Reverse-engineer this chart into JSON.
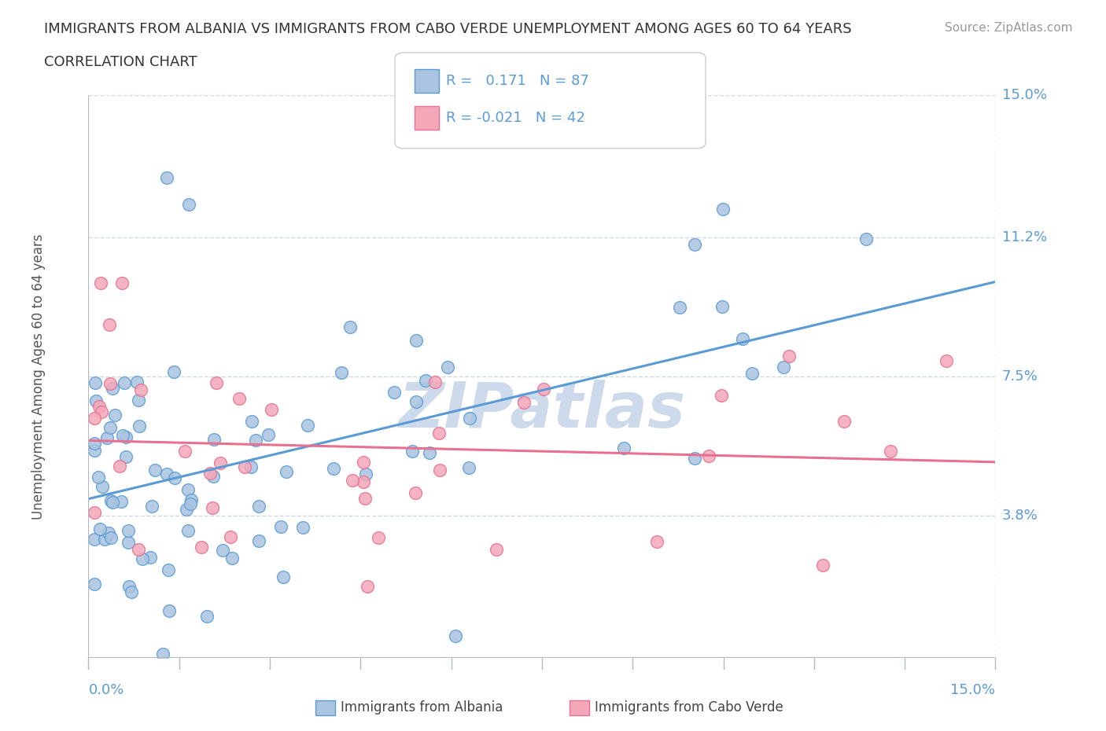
{
  "title_line1": "IMMIGRANTS FROM ALBANIA VS IMMIGRANTS FROM CABO VERDE UNEMPLOYMENT AMONG AGES 60 TO 64 YEARS",
  "title_line2": "CORRELATION CHART",
  "source_text": "Source: ZipAtlas.com",
  "ylabel": "Unemployment Among Ages 60 to 64 years",
  "xlim": [
    0.0,
    0.15
  ],
  "ylim": [
    0.0,
    0.15
  ],
  "ytick_labels": [
    "3.8%",
    "7.5%",
    "11.2%",
    "15.0%"
  ],
  "ytick_values": [
    0.038,
    0.075,
    0.112,
    0.15
  ],
  "albania_R": 0.171,
  "albania_N": 87,
  "caboverde_R": -0.021,
  "caboverde_N": 42,
  "albania_color": "#a8c4e0",
  "caboverde_color": "#f4a7b9",
  "albania_line_color": "#5b9bd5",
  "caboverde_line_color": "#e87090",
  "grid_color": "#d0d8e0",
  "watermark_color": "#ccdaeb",
  "background_color": "#ffffff"
}
